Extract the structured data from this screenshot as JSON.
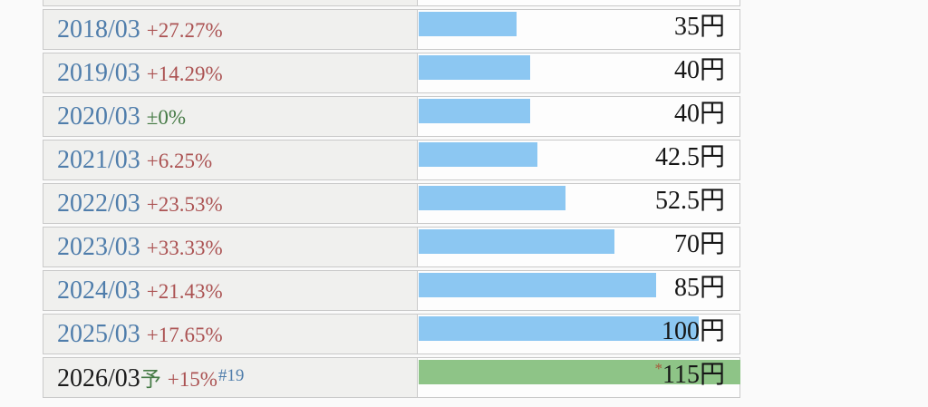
{
  "chart_data": {
    "type": "bar",
    "orientation": "horizontal",
    "title": "",
    "categories": [
      "2018/03",
      "2019/03",
      "2020/03",
      "2021/03",
      "2022/03",
      "2023/03",
      "2024/03",
      "2025/03",
      "2026/03予"
    ],
    "values": [
      35,
      40,
      40,
      42.5,
      52.5,
      70,
      85,
      100,
      115
    ],
    "value_labels": [
      "35円",
      "40円",
      "40円",
      "42.5円",
      "52.5円",
      "70円",
      "85円",
      "100円",
      "*115円"
    ],
    "change_labels": [
      "+27.27%",
      "+14.29%",
      "±0%",
      "+6.25%",
      "+23.53%",
      "+33.33%",
      "+21.43%",
      "+17.65%",
      "+15%"
    ],
    "unit": "円",
    "xlim": [
      0,
      115
    ],
    "grid": false,
    "legend": "none",
    "forecast_note_ref": "#19",
    "forecast_row": "2026/03"
  },
  "colors": {
    "bar_blue": "#8cc7f2",
    "bar_green": "#8ec487",
    "up_red": "#ab5252",
    "zero_green": "#457a45",
    "year_blue": "#4f7dab",
    "note_blue": "#4f7dab",
    "forecast_black": "#1a1a1a",
    "asterisk_brown": "#a8573a",
    "label_bg": "#f0f0ee",
    "border": "#c9c9c9"
  },
  "rows": [
    {
      "year": "2018/03",
      "change": "+27.27%",
      "change_color": "up_red",
      "value": "35円",
      "bar_pct": 30.43,
      "bar_color": "bar_blue"
    },
    {
      "year": "2019/03",
      "change": "+14.29%",
      "change_color": "up_red",
      "value": "40円",
      "bar_pct": 34.78,
      "bar_color": "bar_blue"
    },
    {
      "year": "2020/03",
      "change": "±0%",
      "change_color": "zero_green",
      "value": "40円",
      "bar_pct": 34.78,
      "bar_color": "bar_blue"
    },
    {
      "year": "2021/03",
      "change": "+6.25%",
      "change_color": "up_red",
      "value": "42.5円",
      "bar_pct": 36.96,
      "bar_color": "bar_blue"
    },
    {
      "year": "2022/03",
      "change": "+23.53%",
      "change_color": "up_red",
      "value": "52.5円",
      "bar_pct": 45.65,
      "bar_color": "bar_blue"
    },
    {
      "year": "2023/03",
      "change": "+33.33%",
      "change_color": "up_red",
      "value": "70円",
      "bar_pct": 60.87,
      "bar_color": "bar_blue"
    },
    {
      "year": "2024/03",
      "change": "+21.43%",
      "change_color": "up_red",
      "value": "85円",
      "bar_pct": 73.91,
      "bar_color": "bar_blue"
    },
    {
      "year": "2025/03",
      "change": "+17.65%",
      "change_color": "up_red",
      "value": "100円",
      "bar_pct": 86.96,
      "bar_color": "bar_blue"
    },
    {
      "year": "2026/03",
      "year_suffix": "予",
      "change": "+15%",
      "change_color": "up_red",
      "note": "#19",
      "value": "115円",
      "value_prefix": "*",
      "bar_pct": 100,
      "bar_color": "bar_green",
      "forecast": true
    }
  ]
}
